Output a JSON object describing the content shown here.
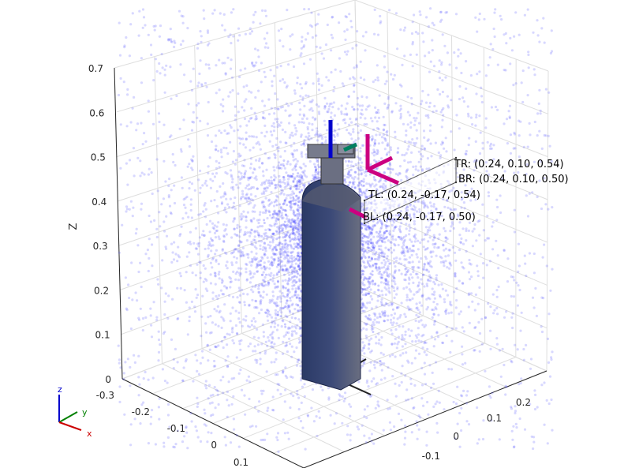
{
  "chart_data": {
    "type": "scatter",
    "title": "",
    "zlabel": "Z",
    "zlim": [
      0,
      0.7
    ],
    "z_ticks": [
      "0",
      "0.1",
      "0.2",
      "0.3",
      "0.4",
      "0.5",
      "0.6",
      "0.7"
    ],
    "x_ticks": [
      "-0.3",
      "-0.2",
      "-0.1",
      "0",
      "0.1"
    ],
    "y_ticks": [
      "-0.1",
      "0",
      "0.1",
      "0.2"
    ],
    "grid": true,
    "point_color": "#4d4dff",
    "annotations": [
      {
        "label": "TR",
        "text": "TR: (0.24, 0.10, 0.54)"
      },
      {
        "label": "BR",
        "text": "BR: (0.24, 0.10, 0.50)"
      },
      {
        "label": "TL",
        "text": "TL: (0.24, -0.17, 0.54)"
      },
      {
        "label": "BL",
        "text": "BL: (0.24, -0.17, 0.50)"
      }
    ],
    "rectangle_corners": [
      {
        "label": "TR",
        "x": 0.24,
        "y": 0.1,
        "z": 0.54
      },
      {
        "label": "BR",
        "x": 0.24,
        "y": 0.1,
        "z": 0.5
      },
      {
        "label": "TL",
        "x": 0.24,
        "y": -0.17,
        "z": 0.54
      },
      {
        "label": "BL",
        "x": 0.24,
        "y": -0.17,
        "z": 0.5
      }
    ],
    "triad": {
      "labels": [
        "z",
        "y",
        "x"
      ],
      "colors": [
        "#0000cc",
        "#008000",
        "#cc0000"
      ]
    }
  }
}
